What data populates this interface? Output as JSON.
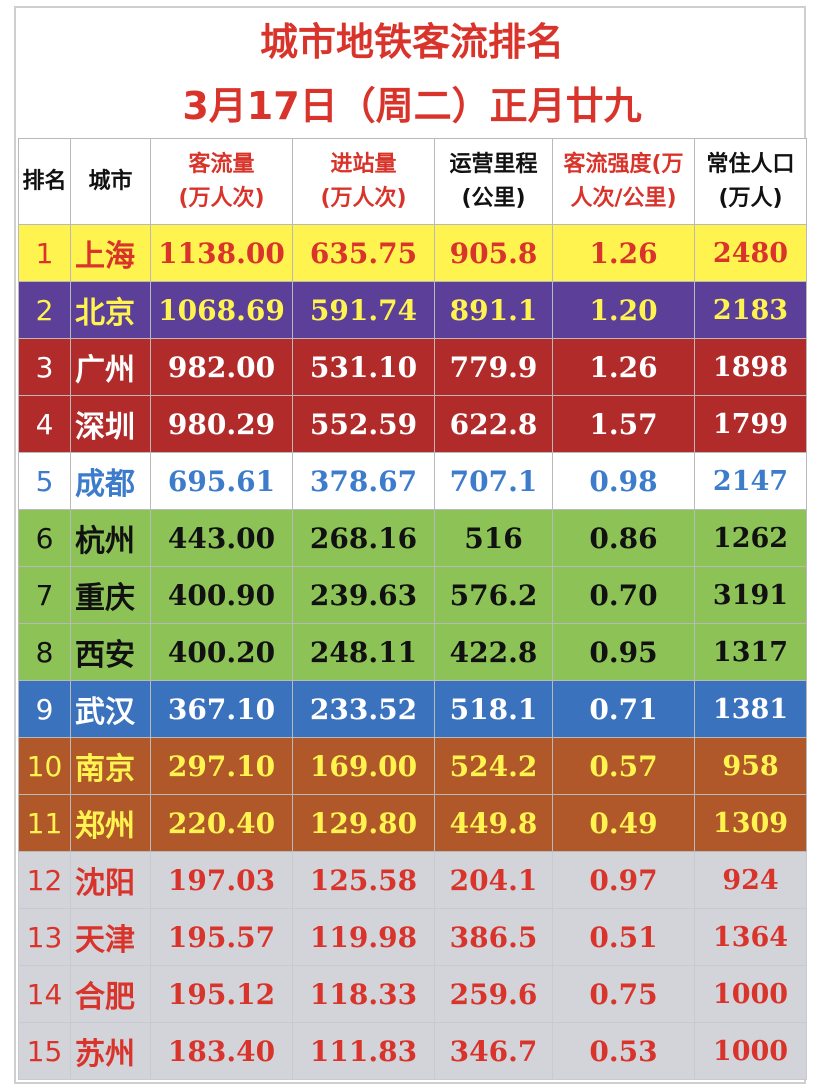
{
  "title": "城市地铁客流排名",
  "subtitle": "3月17日（周二）正月廿九",
  "chart_data": {
    "type": "table",
    "columns": [
      {
        "label": "排名",
        "color": "#111111"
      },
      {
        "label": "城市",
        "color": "#111111"
      },
      {
        "label": "客流量\n(万人次)",
        "color": "#d9342b"
      },
      {
        "label": "进站量\n(万人次)",
        "color": "#d9342b"
      },
      {
        "label": "运营里程\n(公里)",
        "color": "#111111"
      },
      {
        "label": "客流强度(万\n人次/公里)",
        "color": "#d9342b"
      },
      {
        "label": "常住人口\n(万人)",
        "color": "#111111"
      }
    ],
    "rows": [
      {
        "rank": "1",
        "city": "上海",
        "flow": "1138.00",
        "entry": "635.75",
        "km": "905.8",
        "intensity": "1.26",
        "pop": "2480",
        "bg": "#fff44f",
        "fg": "#d9342b"
      },
      {
        "rank": "2",
        "city": "北京",
        "flow": "1068.69",
        "entry": "591.74",
        "km": "891.1",
        "intensity": "1.20",
        "pop": "2183",
        "bg": "#5c3f98",
        "fg": "#fff44f"
      },
      {
        "rank": "3",
        "city": "广州",
        "flow": "982.00",
        "entry": "531.10",
        "km": "779.9",
        "intensity": "1.26",
        "pop": "1898",
        "bg": "#b22b2b",
        "fg": "#ffffff"
      },
      {
        "rank": "4",
        "city": "深圳",
        "flow": "980.29",
        "entry": "552.59",
        "km": "622.8",
        "intensity": "1.57",
        "pop": "1799",
        "bg": "#b22b2b",
        "fg": "#ffffff"
      },
      {
        "rank": "5",
        "city": "成都",
        "flow": "695.61",
        "entry": "378.67",
        "km": "707.1",
        "intensity": "0.98",
        "pop": "2147",
        "bg": "#ffffff",
        "fg": "#3d7ccb"
      },
      {
        "rank": "6",
        "city": "杭州",
        "flow": "443.00",
        "entry": "268.16",
        "km": "516",
        "intensity": "0.86",
        "pop": "1262",
        "bg": "#8dc356",
        "fg": "#111111"
      },
      {
        "rank": "7",
        "city": "重庆",
        "flow": "400.90",
        "entry": "239.63",
        "km": "576.2",
        "intensity": "0.70",
        "pop": "3191",
        "bg": "#8dc356",
        "fg": "#111111"
      },
      {
        "rank": "8",
        "city": "西安",
        "flow": "400.20",
        "entry": "248.11",
        "km": "422.8",
        "intensity": "0.95",
        "pop": "1317",
        "bg": "#8dc356",
        "fg": "#111111"
      },
      {
        "rank": "9",
        "city": "武汉",
        "flow": "367.10",
        "entry": "233.52",
        "km": "518.1",
        "intensity": "0.71",
        "pop": "1381",
        "bg": "#3a72be",
        "fg": "#ffffff"
      },
      {
        "rank": "10",
        "city": "南京",
        "flow": "297.10",
        "entry": "169.00",
        "km": "524.2",
        "intensity": "0.57",
        "pop": "958",
        "bg": "#b0582a",
        "fg": "#fff44f"
      },
      {
        "rank": "11",
        "city": "郑州",
        "flow": "220.40",
        "entry": "129.80",
        "km": "449.8",
        "intensity": "0.49",
        "pop": "1309",
        "bg": "#b0582a",
        "fg": "#fff44f"
      },
      {
        "rank": "12",
        "city": "沈阳",
        "flow": "197.03",
        "entry": "125.58",
        "km": "204.1",
        "intensity": "0.97",
        "pop": "924",
        "bg": "#d2d4da",
        "fg": "#d9342b"
      },
      {
        "rank": "13",
        "city": "天津",
        "flow": "195.57",
        "entry": "119.98",
        "km": "386.5",
        "intensity": "0.51",
        "pop": "1364",
        "bg": "#d2d4da",
        "fg": "#d9342b"
      },
      {
        "rank": "14",
        "city": "合肥",
        "flow": "195.12",
        "entry": "118.33",
        "km": "259.6",
        "intensity": "0.75",
        "pop": "1000",
        "bg": "#d2d4da",
        "fg": "#d9342b"
      },
      {
        "rank": "15",
        "city": "苏州",
        "flow": "183.40",
        "entry": "111.83",
        "km": "346.7",
        "intensity": "0.53",
        "pop": "1000",
        "bg": "#d2d4da",
        "fg": "#d9342b"
      }
    ]
  }
}
